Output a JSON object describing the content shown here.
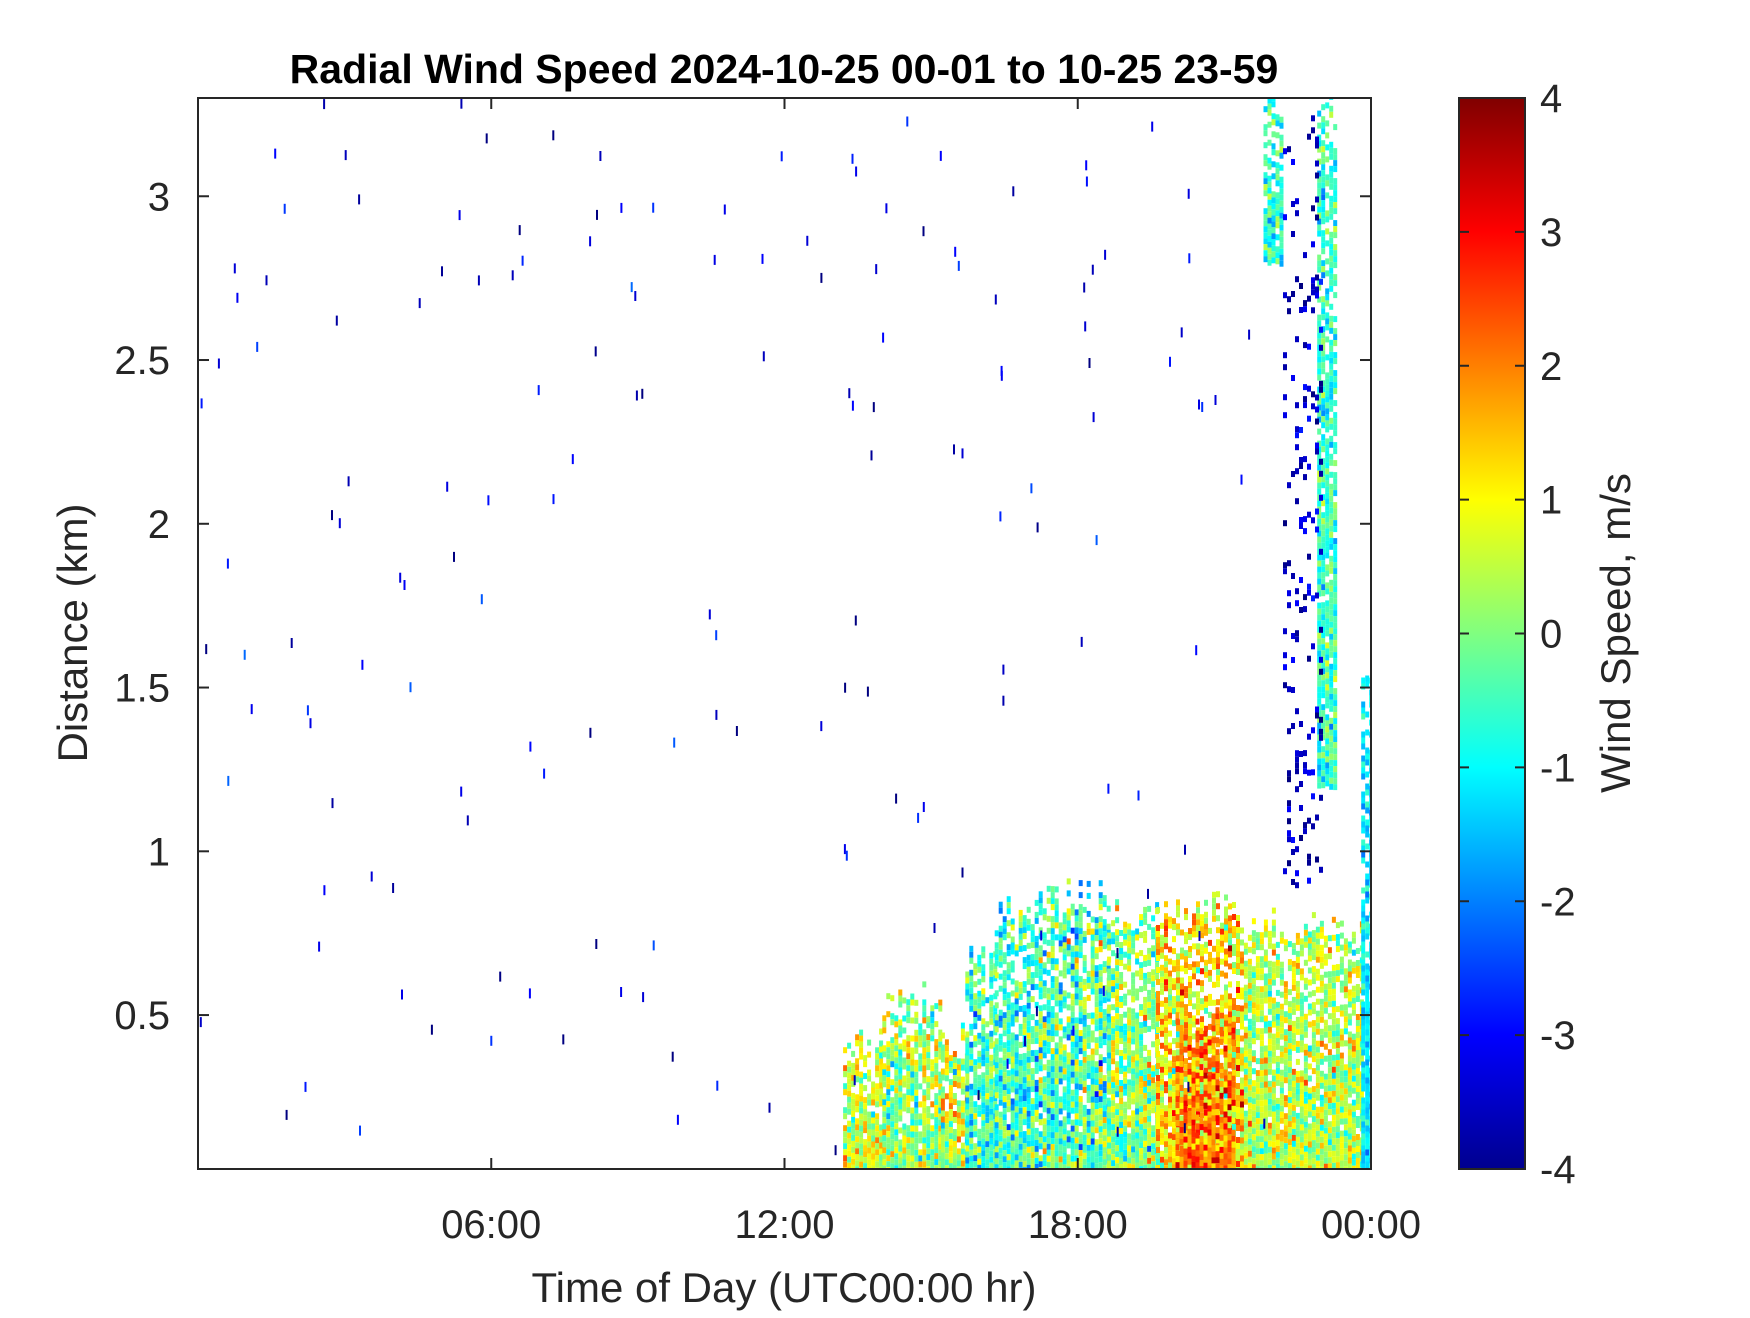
{
  "chart_data": {
    "type": "heatmap",
    "title": "Radial Wind Speed 2024-10-25 00-01 to 10-25 23-59",
    "xlabel": "Time of Day (UTC00:00 hr)",
    "ylabel": "Distance (km)",
    "colorbar_label": "Wind Speed, m/s",
    "x_units": "hours",
    "xlim": [
      0,
      24
    ],
    "ylim": [
      0.03,
      3.3
    ],
    "clim": [
      -4,
      4
    ],
    "colormap": "jet",
    "grid": false,
    "x_ticks": [
      {
        "value": 6,
        "label": "06:00"
      },
      {
        "value": 12,
        "label": "12:00"
      },
      {
        "value": 18,
        "label": "18:00"
      },
      {
        "value": 24,
        "label": "00:00"
      }
    ],
    "y_ticks": [
      {
        "value": 0.5,
        "label": "0.5"
      },
      {
        "value": 1,
        "label": "1"
      },
      {
        "value": 1.5,
        "label": "1.5"
      },
      {
        "value": 2,
        "label": "2"
      },
      {
        "value": 2.5,
        "label": "2.5"
      },
      {
        "value": 3,
        "label": "3"
      }
    ],
    "colorbar_ticks": [
      {
        "value": 4,
        "label": "4"
      },
      {
        "value": 3,
        "label": "3"
      },
      {
        "value": 2,
        "label": "2"
      },
      {
        "value": 1,
        "label": "1"
      },
      {
        "value": 0,
        "label": "0"
      },
      {
        "value": -1,
        "label": "-1"
      },
      {
        "value": -2,
        "label": "-2"
      },
      {
        "value": -3,
        "label": "-3"
      },
      {
        "value": -4,
        "label": "-4"
      }
    ],
    "data_regions": [
      {
        "t_start": 13.2,
        "t_end": 14.0,
        "d_max": 0.45,
        "mean_speed": 0.6,
        "spread": 1.0
      },
      {
        "t_start": 14.0,
        "t_end": 15.2,
        "d_max": 0.58,
        "mean_speed": 0.2,
        "spread": 1.1
      },
      {
        "t_start": 15.2,
        "t_end": 15.7,
        "d_max": 0.45,
        "mean_speed": 0.6,
        "spread": 1.2
      },
      {
        "t_start": 15.7,
        "t_end": 16.3,
        "d_max": 0.68,
        "mean_speed": -0.5,
        "spread": 1.0
      },
      {
        "t_start": 16.3,
        "t_end": 17.2,
        "d_max": 0.84,
        "mean_speed": -0.6,
        "spread": 1.1
      },
      {
        "t_start": 17.2,
        "t_end": 18.6,
        "d_max": 0.9,
        "mean_speed": -0.4,
        "spread": 1.3
      },
      {
        "t_start": 18.6,
        "t_end": 19.6,
        "d_max": 0.84,
        "mean_speed": 0.1,
        "spread": 1.1
      },
      {
        "t_start": 19.6,
        "t_end": 21.4,
        "d_max": 0.86,
        "mean_speed": 1.2,
        "spread": 1.2
      },
      {
        "t_start": 21.4,
        "t_end": 23.8,
        "d_max": 0.8,
        "mean_speed": 0.4,
        "spread": 1.0
      },
      {
        "t_start": 20.0,
        "t_end": 21.2,
        "d_max": 0.5,
        "mean_speed": 2.0,
        "spread": 0.9
      },
      {
        "t_start": 23.8,
        "t_end": 24.0,
        "d_max": 1.55,
        "mean_speed": -1.2,
        "spread": 0.6
      },
      {
        "t_start": 22.9,
        "t_end": 23.3,
        "d_max": 3.3,
        "d_min": 1.2,
        "mean_speed": -0.6,
        "spread": 0.8
      },
      {
        "t_start": 21.8,
        "t_end": 22.2,
        "d_max": 3.3,
        "d_min": 2.8,
        "mean_speed": -0.6,
        "spread": 0.8
      },
      {
        "t_start": 22.2,
        "t_end": 23.0,
        "d_max": 3.3,
        "d_min": 0.9,
        "mean_speed": -3.5,
        "spread": 0.5,
        "density": 0.15
      }
    ],
    "scattered_points": {
      "t_range": [
        0,
        22
      ],
      "d_range": [
        0.1,
        3.3
      ],
      "count": 170,
      "mean_speed": -3.3,
      "spread": 0.8
    }
  }
}
